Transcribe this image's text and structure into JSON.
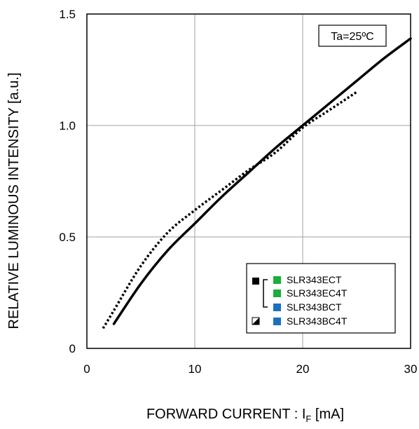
{
  "chart_data": {
    "type": "line",
    "xlabel": "FORWARD CURRENT : I",
    "xlabel_sub": "F",
    "xlabel_unit": " [mA]",
    "ylabel": "RELATIVE LUMINOUS INTENSITY [a.u.]",
    "xlim": [
      0,
      30
    ],
    "ylim": [
      0,
      1.5
    ],
    "xticks": [
      0,
      10,
      20,
      30
    ],
    "yticks": [
      0,
      0.5,
      1.0,
      1.5
    ],
    "xtick_labels": [
      "0",
      "10",
      "20",
      "30"
    ],
    "ytick_labels": [
      "0",
      "0.5",
      "1.0",
      "1.5"
    ],
    "grid": true,
    "condition_label": "Ta=25ºC",
    "series": [
      {
        "style": "solid",
        "color": "#000000",
        "x": [
          2.5,
          5,
          7.5,
          10,
          12.5,
          15,
          17.5,
          20,
          22.5,
          25,
          27.5,
          30
        ],
        "y": [
          0.11,
          0.29,
          0.44,
          0.56,
          0.68,
          0.79,
          0.9,
          1.0,
          1.1,
          1.2,
          1.3,
          1.39
        ]
      },
      {
        "style": "dotted",
        "color": "#000000",
        "x": [
          1.5,
          2.5,
          5,
          7.5,
          10,
          12.5,
          15,
          17.5,
          20,
          22.5,
          25
        ],
        "y": [
          0.09,
          0.17,
          0.37,
          0.52,
          0.62,
          0.71,
          0.8,
          0.88,
          0.99,
          1.07,
          1.15
        ]
      }
    ],
    "legend": {
      "position": "bottom-right",
      "items": [
        {
          "label": "SLR343ECT",
          "color": "#1aae3c"
        },
        {
          "label": "SLR343EC4T",
          "color": "#1aae3c"
        },
        {
          "label": "SLR343BCT",
          "color": "#1a6fc4"
        },
        {
          "label": "SLR343BC4T",
          "color": "#1a6fc4"
        }
      ]
    }
  }
}
